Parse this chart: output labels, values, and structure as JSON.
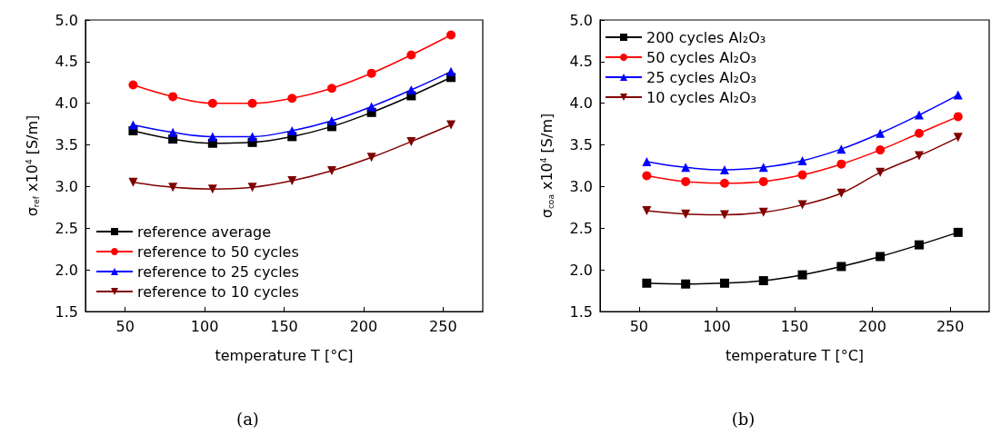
{
  "chart_data": [
    {
      "type": "line",
      "title": "(a)",
      "xlabel": "temperature T [°C]",
      "ylabel": "σ$_{ref}$ x10$^{4}$ [S/m]",
      "x": [
        55,
        80,
        105,
        130,
        155,
        180,
        205,
        230,
        255
      ],
      "xlim": [
        25,
        275
      ],
      "xticks": [
        50,
        100,
        150,
        200,
        250
      ],
      "ylim": [
        1.5,
        5.0
      ],
      "yticks": [
        1.5,
        {
          "value": 2,
          "label": "2.0"
        },
        2.5,
        {
          "value": 3,
          "label": "3.0"
        },
        3.5,
        {
          "value": 4,
          "label": "4.0"
        },
        4.5,
        {
          "value": 5,
          "label": "5.0"
        }
      ],
      "grid": false,
      "legend": "bottom left",
      "line_style": "solid",
      "series": [
        {
          "name": "reference average",
          "color": "#000000",
          "marker": "square",
          "values": [
            3.67,
            3.57,
            3.52,
            3.53,
            3.6,
            3.72,
            3.89,
            4.09,
            4.31
          ]
        },
        {
          "name": "reference to 50 cycles",
          "color": "#ff0000",
          "marker": "circle",
          "values": [
            4.22,
            4.08,
            4.0,
            4.0,
            4.06,
            4.18,
            4.36,
            4.58,
            4.82
          ]
        },
        {
          "name": "reference to 25 cycles",
          "color": "#0000ff",
          "marker": "triangle",
          "values": [
            3.74,
            3.65,
            3.6,
            3.6,
            3.67,
            3.79,
            3.96,
            4.16,
            4.38
          ]
        },
        {
          "name": "reference to 10 cycles",
          "color": "#800000",
          "marker": "triangle-down",
          "values": [
            3.05,
            2.99,
            2.97,
            2.99,
            3.07,
            3.19,
            3.35,
            3.54,
            3.74
          ]
        }
      ]
    },
    {
      "type": "line",
      "title": "(b)",
      "xlabel": "temperature T [°C]",
      "ylabel": "σ$_{coa}$ x10$^{4}$ [S/m]",
      "x": [
        55,
        80,
        105,
        130,
        155,
        180,
        205,
        230,
        255
      ],
      "xlim": [
        25,
        275
      ],
      "xticks": [
        50,
        100,
        150,
        200,
        250
      ],
      "ylim": [
        1.5,
        5.0
      ],
      "yticks": [
        1.5,
        {
          "value": 2,
          "label": "2.0"
        },
        2.5,
        {
          "value": 3,
          "label": "3.0"
        },
        3.5,
        {
          "value": 4,
          "label": "4.0"
        },
        4.5,
        {
          "value": 5,
          "label": "5.0"
        }
      ],
      "grid": false,
      "legend": "top left",
      "line_style": "solid",
      "series": [
        {
          "name": "200 cycles Al₂O₃",
          "color": "#000000",
          "marker": "square",
          "values": [
            1.84,
            1.83,
            1.84,
            1.87,
            1.94,
            2.04,
            2.16,
            2.3,
            2.45
          ]
        },
        {
          "name": "50 cycles Al₂O₃",
          "color": "#ff0000",
          "marker": "circle",
          "values": [
            3.13,
            3.06,
            3.04,
            3.06,
            3.14,
            3.27,
            3.44,
            3.64,
            3.84
          ]
        },
        {
          "name": "25 cycles Al₂O₃",
          "color": "#0000ff",
          "marker": "triangle",
          "values": [
            3.3,
            3.23,
            3.2,
            3.23,
            3.31,
            3.45,
            3.64,
            3.86,
            4.1
          ]
        },
        {
          "name": "10 cycles Al₂O₃",
          "color": "#800000",
          "marker": "triangle-down",
          "values": [
            2.71,
            2.67,
            2.66,
            2.69,
            2.78,
            2.92,
            3.17,
            3.37,
            3.59
          ]
        }
      ]
    }
  ]
}
